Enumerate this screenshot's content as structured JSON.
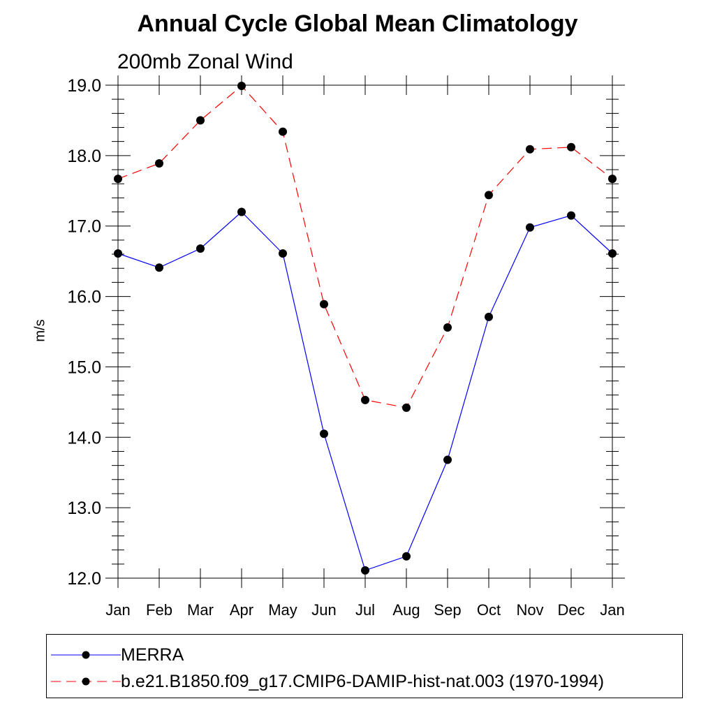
{
  "chart_data": {
    "type": "line",
    "title": "Annual Cycle Global Mean Climatology",
    "subtitle": "200mb Zonal Wind",
    "xlabel": "",
    "ylabel": "m/s",
    "categories": [
      "Jan",
      "Feb",
      "Mar",
      "Apr",
      "May",
      "Jun",
      "Jul",
      "Aug",
      "Sep",
      "Oct",
      "Nov",
      "Dec",
      "Jan"
    ],
    "ylim": [
      12.0,
      19.0
    ],
    "yticks": [
      "12.0",
      "13.0",
      "14.0",
      "15.0",
      "16.0",
      "17.0",
      "18.0",
      "19.0"
    ],
    "grid": false,
    "legend_position": "bottom",
    "series": [
      {
        "name": "MERRA",
        "color": "#0000ff",
        "style": "solid",
        "marker": "filled-circle",
        "values": [
          16.61,
          16.41,
          16.68,
          17.2,
          16.61,
          14.05,
          12.11,
          12.31,
          13.68,
          15.71,
          16.98,
          17.15,
          16.61
        ]
      },
      {
        "name": "b.e21.B1850.f09_g17.CMIP6-DAMIP-hist-nat.003 (1970-1994)",
        "color": "#ff0000",
        "style": "dashed",
        "marker": "filled-circle",
        "values": [
          17.67,
          17.89,
          18.5,
          18.99,
          18.34,
          15.89,
          14.53,
          14.42,
          15.56,
          17.44,
          18.09,
          18.12,
          17.67
        ]
      }
    ]
  }
}
